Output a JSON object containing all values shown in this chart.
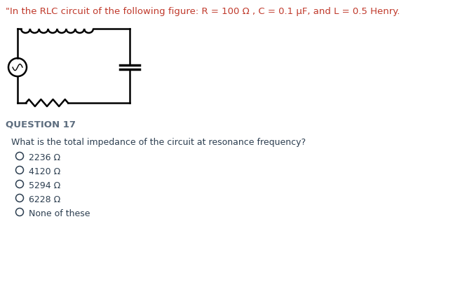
{
  "title_text": "\"In the RLC circuit of the following figure: R = 100 Ω , C = 0.1 μF, and L = 0.5 Henry.",
  "title_color": "#c0392b",
  "question_label": "QUESTION 17",
  "question_label_color": "#5d6d7e",
  "question_text": "What is the total impedance of the circuit at resonance frequency?",
  "question_text_color": "#2c3e50",
  "options": [
    "2236 Ω",
    "4120 Ω",
    "5294 Ω",
    "6228 Ω",
    "None of these"
  ],
  "options_color": "#2c3e50",
  "background_color": "#ffffff",
  "circuit_color": "#000000",
  "font_size_title": 9.5,
  "font_size_question_label": 9.5,
  "font_size_question": 9,
  "font_size_options": 9
}
